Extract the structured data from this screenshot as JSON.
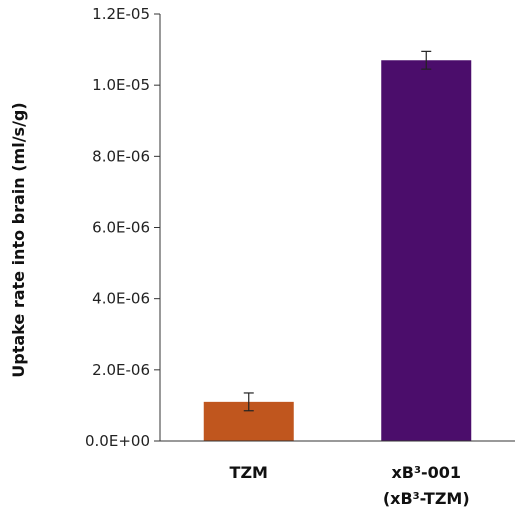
{
  "chart_data": {
    "type": "bar",
    "title": "",
    "xlabel": "",
    "ylabel": "Uptake rate  into brain (ml/s/g)",
    "ylim": [
      0,
      1.2e-05
    ],
    "yticks": [
      {
        "value": 0,
        "label": "0.0E+00"
      },
      {
        "value": 2e-06,
        "label": "2.0E-06"
      },
      {
        "value": 4e-06,
        "label": "4.0E-06"
      },
      {
        "value": 6e-06,
        "label": "6.0E-06"
      },
      {
        "value": 8e-06,
        "label": "8.0E-06"
      },
      {
        "value": 1e-05,
        "label": "1.0E-05"
      },
      {
        "value": 1.2e-05,
        "label": "1.2E-05"
      }
    ],
    "categories": [
      {
        "line1_pre": "TZM",
        "line1_sup": "",
        "line1_post": "",
        "line2_pre": "",
        "line2_sup": "",
        "line2_post": ""
      },
      {
        "line1_pre": "xB",
        "line1_sup": "3",
        "line1_post": "-001",
        "line2_pre": "(xB",
        "line2_sup": "3",
        "line2_post": "-TZM)"
      }
    ],
    "values": [
      1.1e-06,
      1.07e-05
    ],
    "errors": [
      2.5e-07,
      2.5e-07
    ],
    "colors": [
      "#c0561e",
      "#4b0d6b"
    ],
    "grid": false,
    "legend": "none"
  }
}
